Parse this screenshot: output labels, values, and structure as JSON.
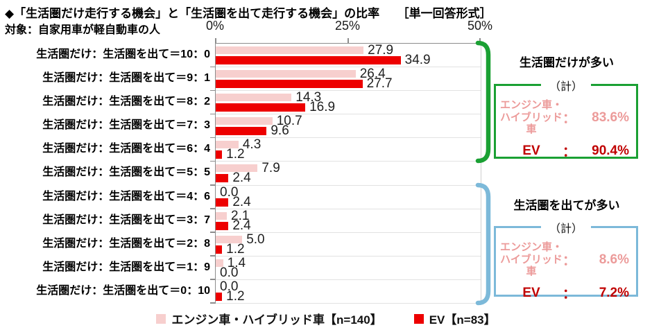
{
  "header": {
    "title": "◆「生活圏だけ走行する機会」と「生活圏を出て走行する機会」の比率　　［単一回答形式］",
    "subtitle": "対象：自家用車が軽自動車の人"
  },
  "chart_data": {
    "type": "bar",
    "orientation": "horizontal",
    "xlim": [
      0,
      50
    ],
    "x_ticks": [
      "0%",
      "25%",
      "50%"
    ],
    "grid": "horizontal-row-separators",
    "legend_position": "bottom",
    "categories": [
      "生活圏だけ：生活圏を出て＝10：0",
      "生活圏だけ：生活圏を出て＝9：1",
      "生活圏だけ：生活圏を出て＝8：2",
      "生活圏だけ：生活圏を出て＝7：3",
      "生活圏だけ：生活圏を出て＝6：4",
      "生活圏だけ：生活圏を出て＝5：5",
      "生活圏だけ：生活圏を出て＝4：6",
      "生活圏だけ：生活圏を出て＝3：7",
      "生活圏だけ：生活圏を出て＝2：8",
      "生活圏だけ：生活圏を出て＝1：9",
      "生活圏だけ：生活圏を出て＝0：10"
    ],
    "series": [
      {
        "name": "エンジン車・ハイブリッド車【n=140】",
        "color": "#f7cfce",
        "values": [
          27.9,
          26.4,
          14.3,
          10.7,
          4.3,
          7.9,
          0.0,
          2.1,
          5.0,
          1.4,
          0.0
        ]
      },
      {
        "name": "EV【n=83】",
        "color": "#ed0000",
        "values": [
          34.9,
          27.7,
          16.9,
          9.6,
          1.2,
          2.4,
          2.4,
          2.4,
          1.2,
          0.0,
          1.2
        ]
      }
    ]
  },
  "legend": {
    "items": [
      {
        "label": "エンジン車・ハイブリッド車【n=140】",
        "color": "#f7cfce"
      },
      {
        "label": "EV【n=83】",
        "color": "#ed0000"
      }
    ]
  },
  "panels": [
    {
      "title": "生活圏だけが多い",
      "tab": "（計）",
      "accent": "#1aa033",
      "rows": [
        {
          "label_line1": "エンジン車・",
          "label_line2": "ハイブリッド車",
          "colon": "：",
          "value": "83.6%"
        },
        {
          "label_line1": "EV",
          "label_line2": "",
          "colon": "：",
          "value": "90.4%"
        }
      ]
    },
    {
      "title": "生活圏を出てが多い",
      "tab": "（計）",
      "accent": "#7cb9d9",
      "rows": [
        {
          "label_line1": "エンジン車・",
          "label_line2": "ハイブリッド車",
          "colon": "：",
          "value": "8.6%"
        },
        {
          "label_line1": "EV",
          "label_line2": "",
          "colon": "：",
          "value": "7.2%"
        }
      ]
    }
  ],
  "colors": {
    "engine_bar": "#f7cfce",
    "ev_bar": "#ed0000",
    "engine_text": "#ec9b9a",
    "ev_text": "#c00000",
    "bracket_green": "#1aa033",
    "bracket_blue": "#7cb9d9",
    "axis_line": "#8c8c8c",
    "grid_line": "#e2e2e2"
  }
}
